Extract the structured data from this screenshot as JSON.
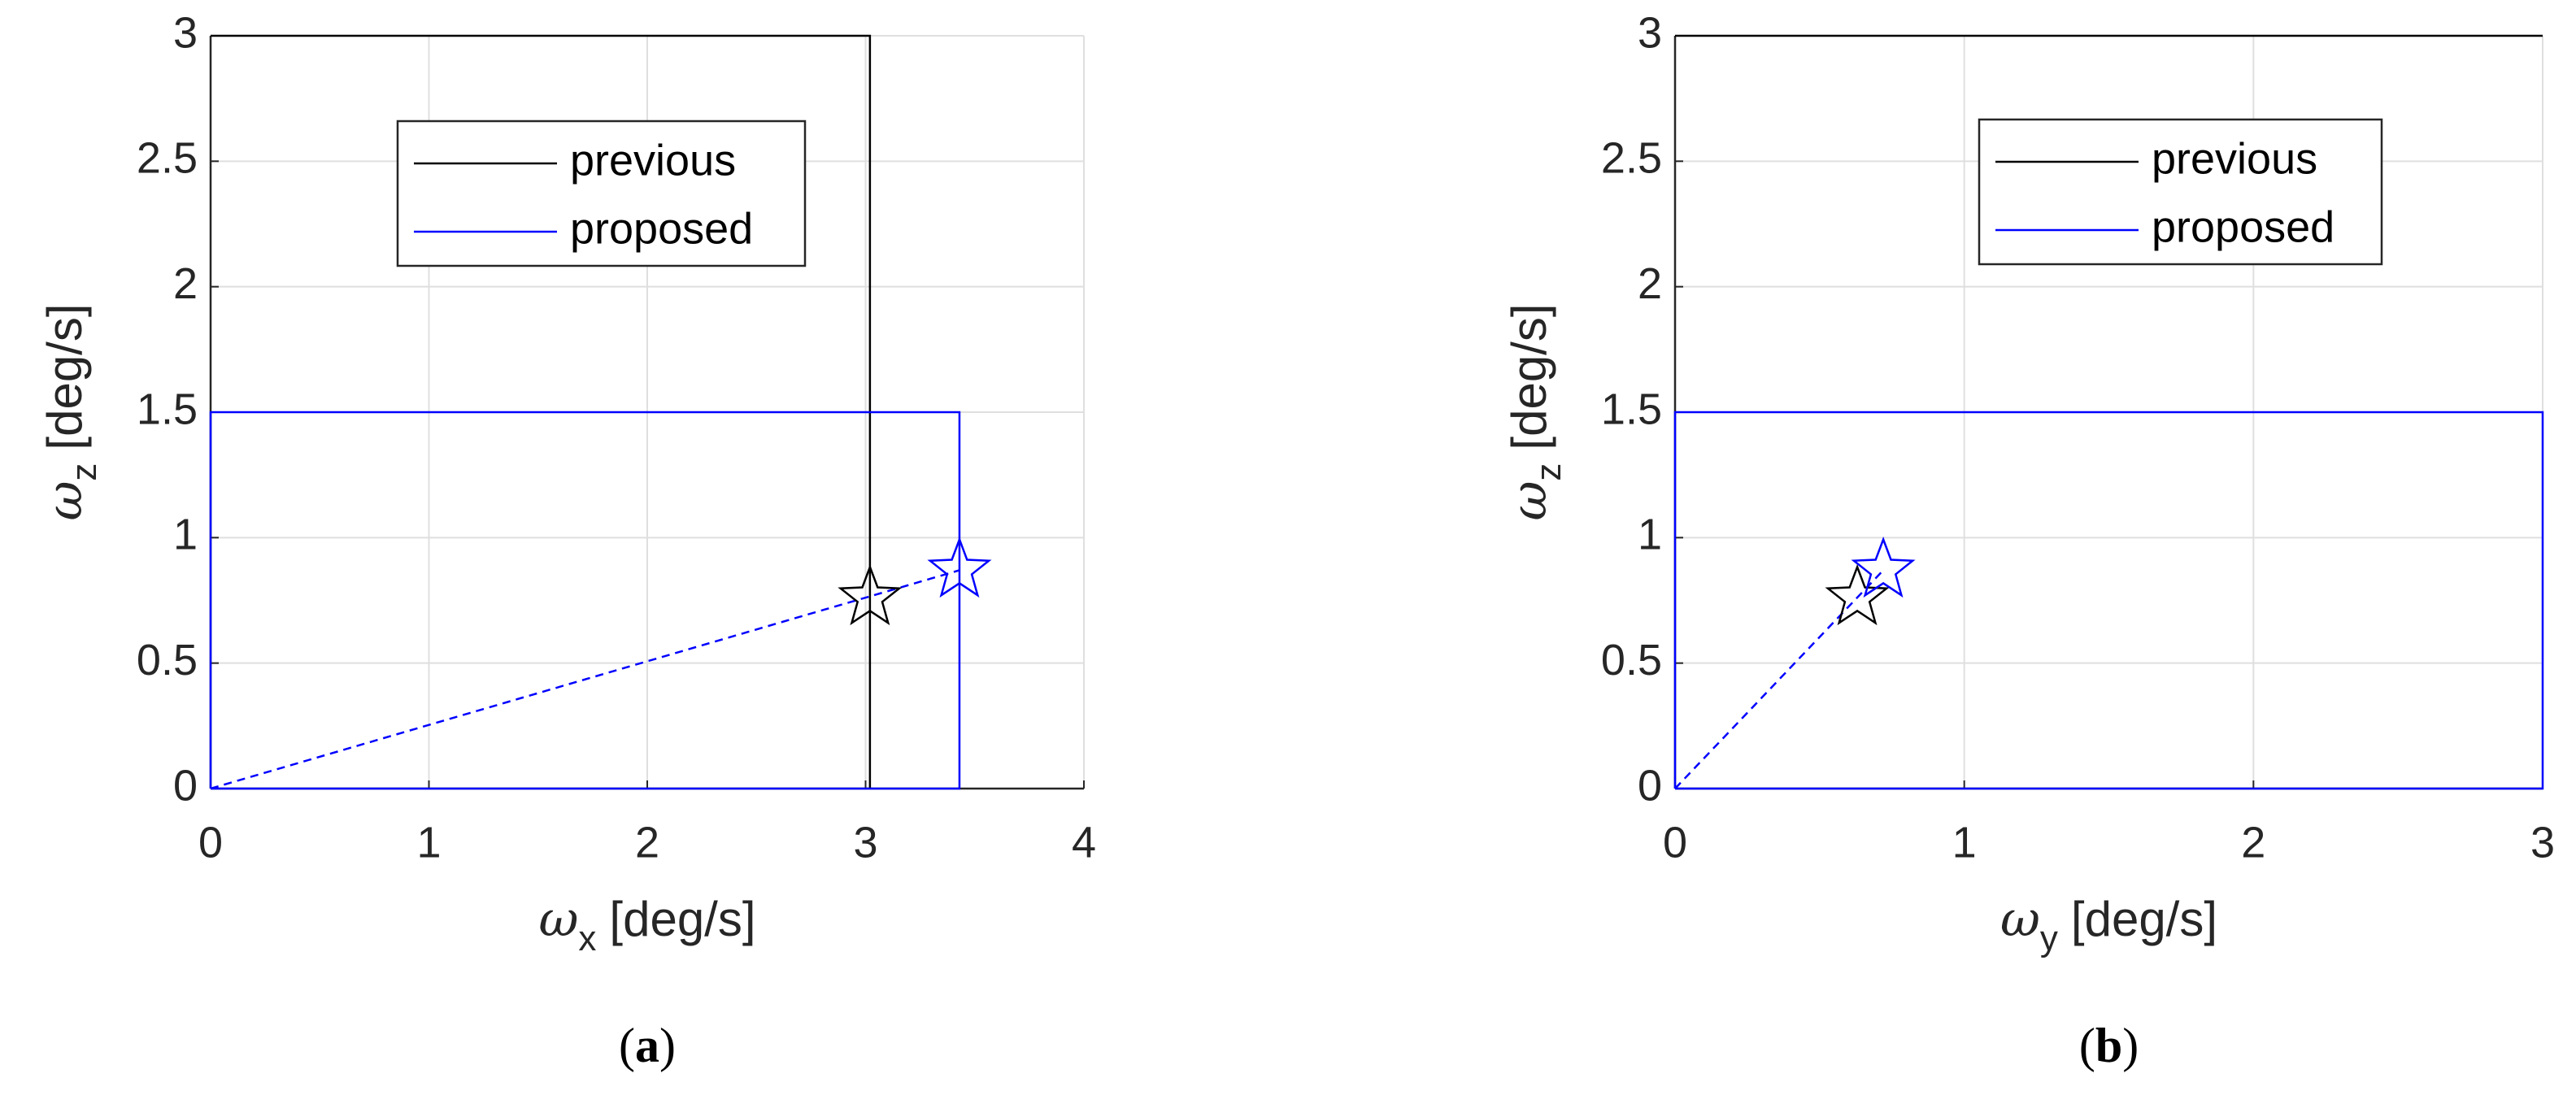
{
  "chart_data": [
    {
      "type": "line",
      "caption_label": "a",
      "x_label": {
        "symbol": "ω",
        "subscript": "x",
        "unit": "[deg/s]"
      },
      "y_label": {
        "symbol": "ω",
        "subscript": "z",
        "unit": "[deg/s]"
      },
      "xlim": [
        0,
        4
      ],
      "xticks": [
        0,
        1,
        2,
        3,
        4
      ],
      "ylim": [
        0,
        3
      ],
      "yticks": [
        0,
        0.5,
        1,
        1.5,
        2,
        2.5,
        3
      ],
      "grid": true,
      "series": [
        {
          "name": "previous",
          "color": "#000000",
          "x": [
            0,
            3.02,
            3.02
          ],
          "y": [
            3,
            3,
            0
          ],
          "point": {
            "x": 3.02,
            "y": 0.76
          }
        },
        {
          "name": "proposed",
          "color": "#0000ff",
          "x": [
            0,
            0,
            3.43,
            3.43,
            0
          ],
          "y": [
            0,
            1.5,
            1.5,
            0,
            0
          ],
          "point": {
            "x": 3.43,
            "y": 0.87
          }
        }
      ],
      "dashed_line": {
        "color": "#0000ff",
        "x": [
          0,
          3.43
        ],
        "y": [
          0,
          0.87
        ]
      }
    },
    {
      "type": "line",
      "caption_label": "b",
      "x_label": {
        "symbol": "ω",
        "subscript": "y",
        "unit": "[deg/s]"
      },
      "y_label": {
        "symbol": "ω",
        "subscript": "z",
        "unit": "[deg/s]"
      },
      "xlim": [
        0,
        3
      ],
      "xticks": [
        0,
        1,
        2,
        3
      ],
      "ylim": [
        0,
        3
      ],
      "yticks": [
        0,
        0.5,
        1,
        1.5,
        2,
        2.5,
        3
      ],
      "grid": true,
      "series": [
        {
          "name": "previous",
          "color": "#000000",
          "x": [
            0,
            3
          ],
          "y": [
            3,
            3
          ],
          "point": {
            "x": 0.63,
            "y": 0.76
          }
        },
        {
          "name": "proposed",
          "color": "#0000ff",
          "x": [
            0,
            0,
            3,
            3,
            0
          ],
          "y": [
            0,
            1.5,
            1.5,
            0,
            0
          ],
          "point": {
            "x": 0.72,
            "y": 0.87
          }
        }
      ],
      "dashed_line": {
        "color": "#0000ff",
        "x": [
          0,
          0.72
        ],
        "y": [
          0,
          0.87
        ]
      }
    }
  ]
}
